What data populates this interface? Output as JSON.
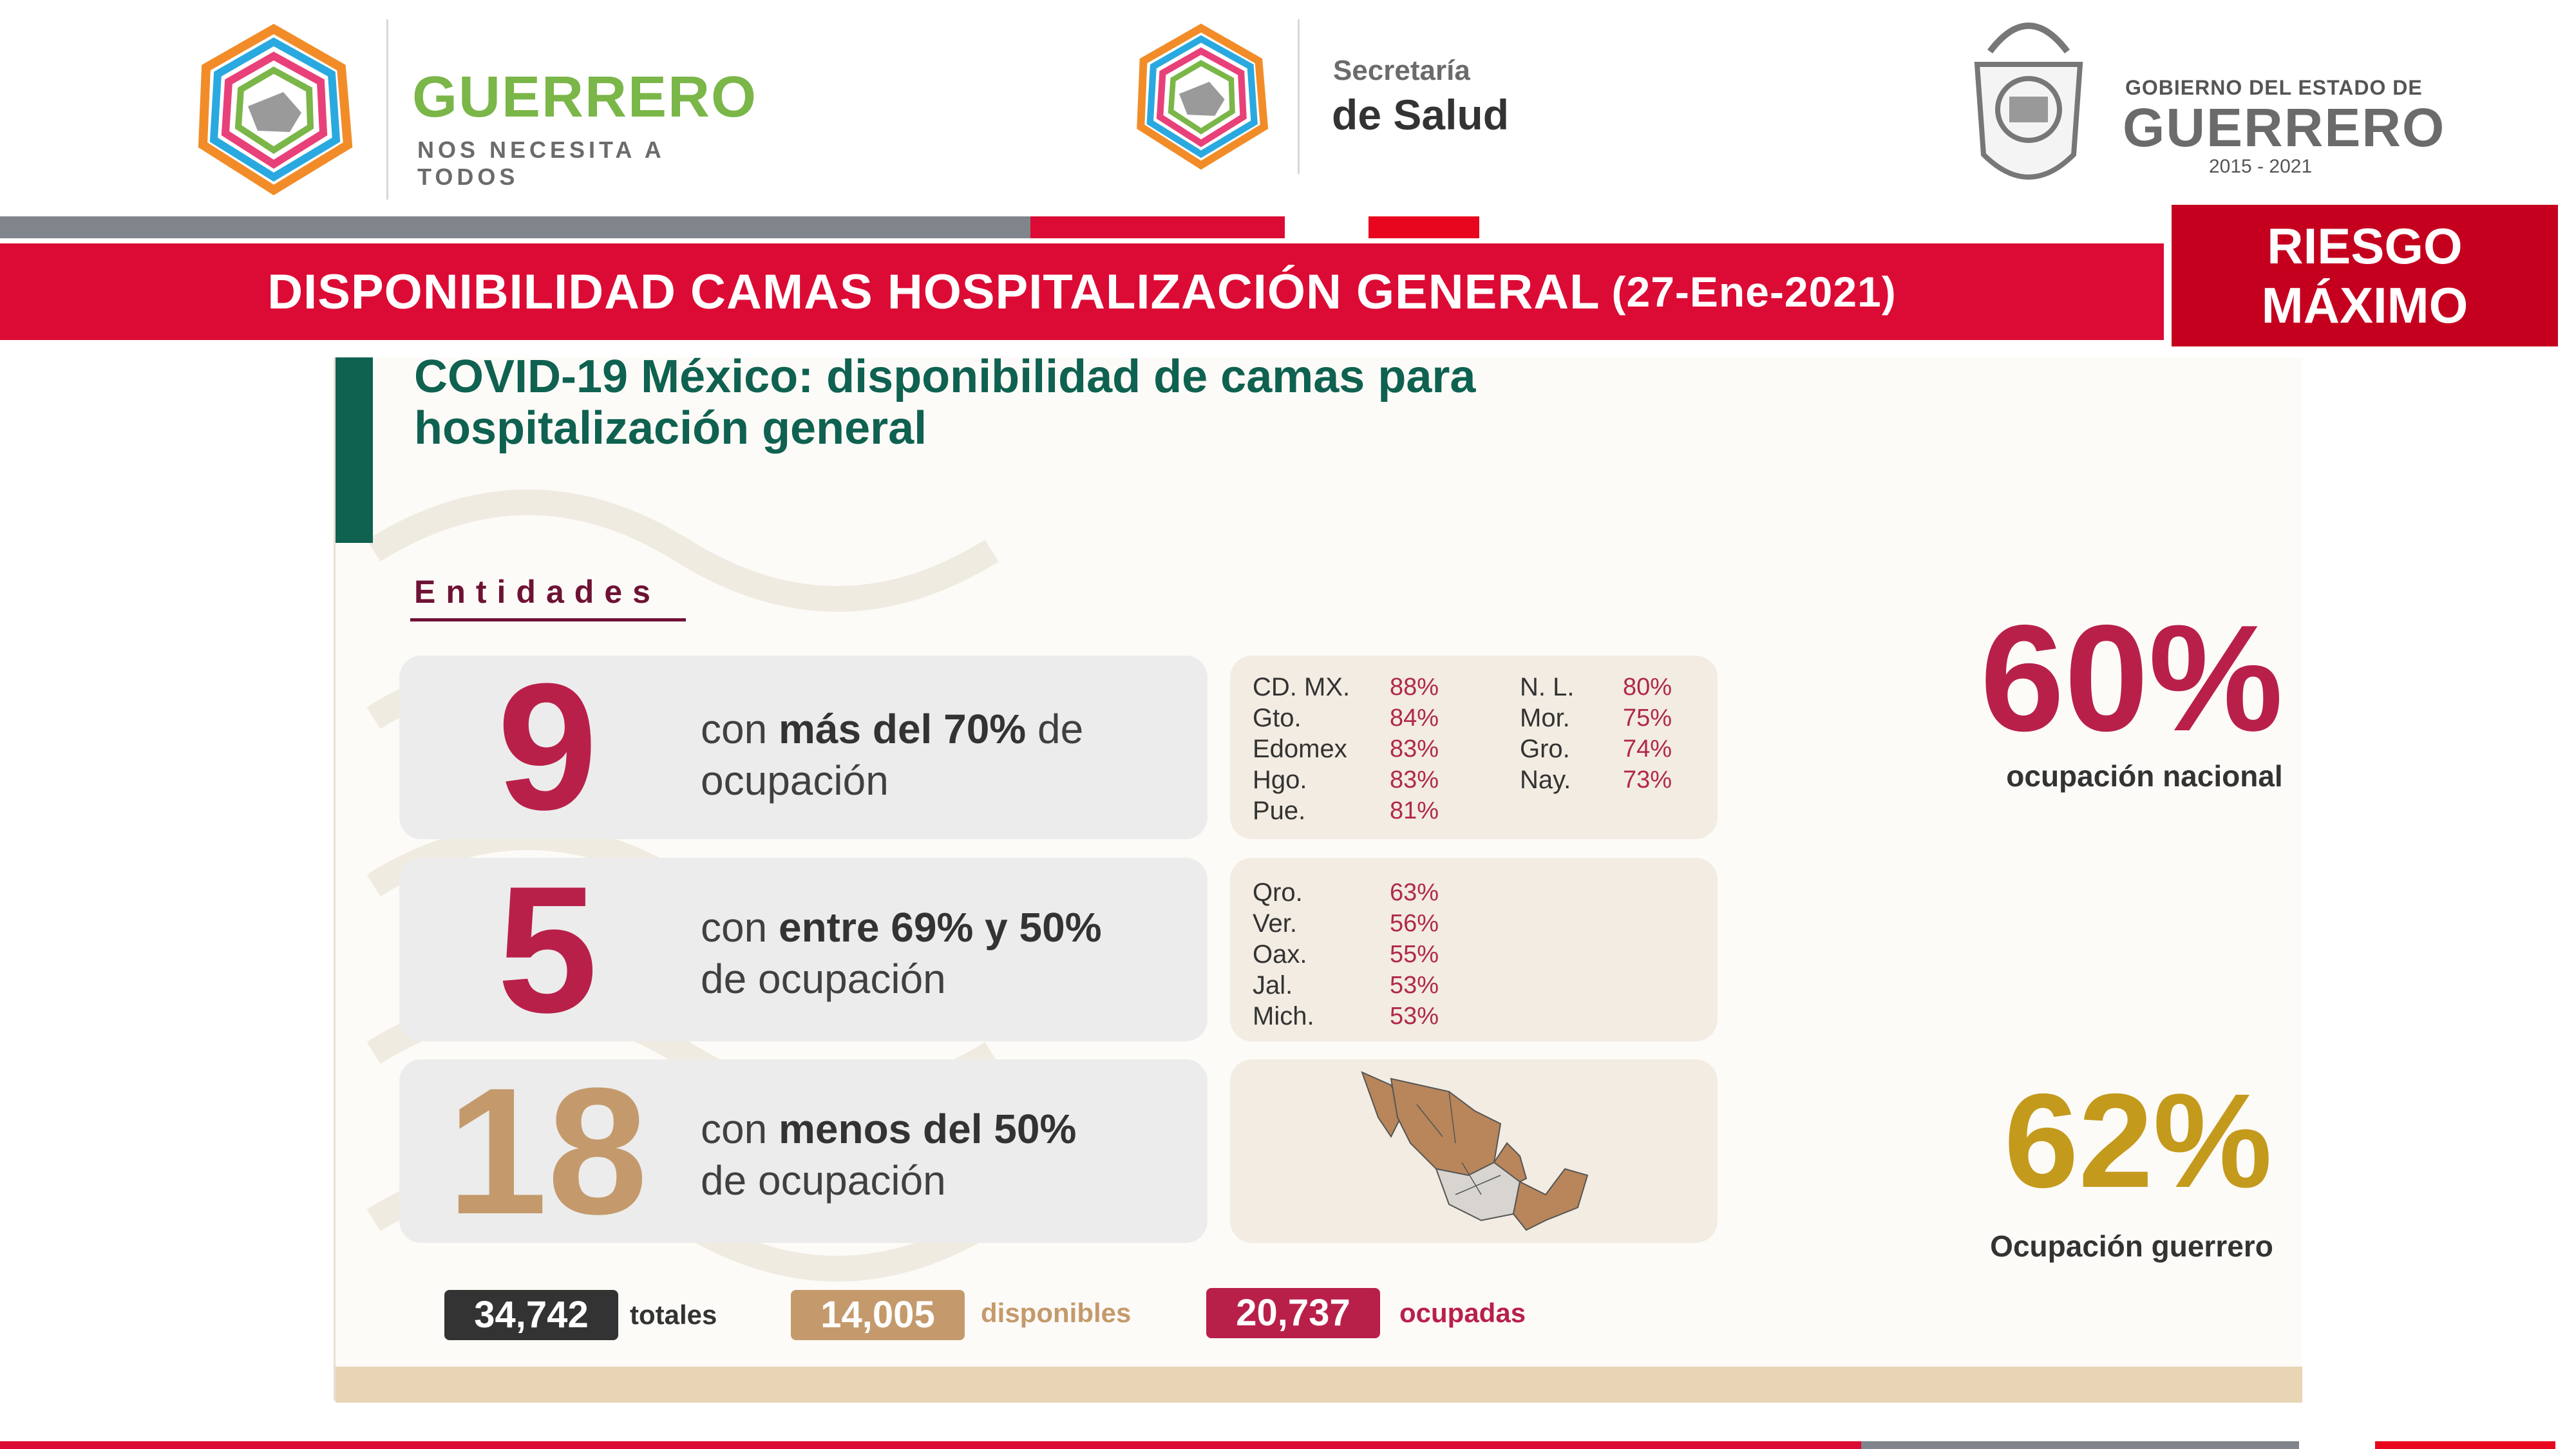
{
  "header": {
    "guerrero_logo": {
      "wordmark": "GUERRERO",
      "tagline": "NOS NECESITA A TODOS"
    },
    "salud_logo": {
      "line1": "Secretaría",
      "line2": "de Salud"
    },
    "gobierno_logo": {
      "line1": "GOBIERNO DEL ESTADO DE",
      "line2": "GUERRERO",
      "years": "2015 - 2021"
    }
  },
  "banner": {
    "title": "DISPONIBILIDAD CAMAS HOSPITALIZACIÓN GENERAL",
    "date": "(27-Ene-2021)",
    "risk_line1": "RIESGO",
    "risk_line2": "MÁXIMO"
  },
  "panel": {
    "heading_line1": "COVID-19 México: disponibilidad de camas para",
    "heading_line2": "hospitalización general",
    "entidades_label": "Entidades",
    "rows": [
      {
        "count": "9",
        "desc_pre": "con ",
        "desc_bold": "más del 70%",
        "desc_post": " de",
        "desc_line2": "ocupación",
        "states_left": [
          {
            "name": "CD. MX.",
            "value": "88%"
          },
          {
            "name": "Gto.",
            "value": "84%"
          },
          {
            "name": "Edomex",
            "value": "83%"
          },
          {
            "name": "Hgo.",
            "value": "83%"
          },
          {
            "name": "Pue.",
            "value": "81%"
          }
        ],
        "states_right": [
          {
            "name": "N. L.",
            "value": "80%"
          },
          {
            "name": "Mor.",
            "value": "75%"
          },
          {
            "name": "Gro.",
            "value": "74%"
          },
          {
            "name": "Nay.",
            "value": "73%"
          }
        ]
      },
      {
        "count": "5",
        "desc_pre": "con ",
        "desc_bold": "entre 69% y 50%",
        "desc_post": "",
        "desc_line2": "de ocupación",
        "states_left": [
          {
            "name": "Qro.",
            "value": "63%"
          },
          {
            "name": "Ver.",
            "value": "56%"
          },
          {
            "name": "Oax.",
            "value": "55%"
          },
          {
            "name": "Jal.",
            "value": "53%"
          },
          {
            "name": "Mich.",
            "value": "53%"
          }
        ]
      },
      {
        "count": "18",
        "desc_pre": "con ",
        "desc_bold": "menos del 50%",
        "desc_post": "",
        "desc_line2": "de ocupación"
      }
    ],
    "totals": [
      {
        "value": "34,742",
        "label": "totales"
      },
      {
        "value": "14,005",
        "label": "disponibles"
      },
      {
        "value": "20,737",
        "label": "ocupadas"
      }
    ]
  },
  "stats": {
    "national": {
      "value": "60%",
      "label": "ocupación nacional"
    },
    "guerrero": {
      "value": "62%",
      "label": "Ocupación guerrero"
    }
  },
  "colors": {
    "red": "#dc0b35",
    "dark_red": "#c5001f",
    "green": "#0f6150",
    "crimson": "#b8204a",
    "gold": "#c49a6c",
    "gold_pct": "#c49a1c",
    "gray_bar": "#7f858a",
    "dark_box": "#333333"
  }
}
